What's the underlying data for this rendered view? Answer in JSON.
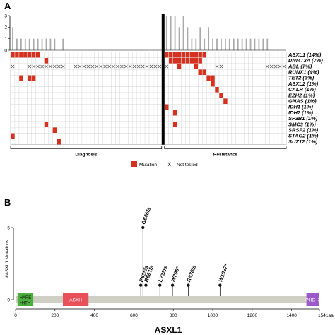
{
  "figure": {
    "panel_a_label": "A",
    "panel_b_label": "B"
  },
  "chart_data": [
    {
      "type": "heatmap",
      "panel": "A",
      "bar_axis_ticks": [
        0,
        1,
        2,
        3
      ],
      "groups": [
        "Diagnosis",
        "Resistance"
      ],
      "legend": {
        "mutation": "Mutation",
        "not_tested": "Not tested"
      },
      "colors": {
        "mutation": "#d7301f",
        "bar": "#aaaaaa",
        "grid": "#cccccc"
      },
      "rows": [
        "ASXL1 (14%)",
        "DNMT3A (7%)",
        "ABL (7%)",
        "RUNX1 (4%)",
        "TET2 (3%)",
        "ASXL2 (1%)",
        "CALR (1%)",
        "EZH2 (1%)",
        "GNAS (1%)",
        "IDH1 (1%)",
        "IDH2 (1%)",
        "SF3B1 (1%)",
        "SMC3 (1%)",
        "SRSF2 (1%)",
        "STAG2 (1%)",
        "SUZ12 (1%)"
      ],
      "diagnosis": {
        "n_samples": 36,
        "mutation_counts": [
          2,
          1,
          1,
          1,
          1,
          1,
          1,
          1,
          1,
          1,
          1,
          0,
          1,
          0,
          0,
          0,
          0,
          0,
          0,
          0,
          0,
          0,
          0,
          0,
          0,
          0,
          0,
          0,
          0,
          0,
          0,
          0,
          0,
          0,
          0,
          0
        ],
        "mutations": [
          [
            0,
            0
          ],
          [
            1,
            0
          ],
          [
            2,
            0
          ],
          [
            3,
            0
          ],
          [
            4,
            0
          ],
          [
            5,
            0
          ],
          [
            6,
            0
          ],
          [
            2,
            4
          ],
          [
            0,
            14
          ],
          [
            4,
            4
          ],
          [
            5,
            4
          ],
          [
            8,
            1
          ],
          [
            8,
            12
          ],
          [
            10,
            13
          ],
          [
            11,
            15
          ]
        ],
        "not_tested_columns": [
          0,
          4,
          5,
          6,
          7,
          8,
          9,
          10,
          11,
          12,
          15,
          16,
          17,
          18,
          19,
          20,
          21,
          22,
          23,
          24,
          25,
          26,
          27,
          28,
          29,
          30,
          31,
          32,
          33,
          34,
          35
        ]
      },
      "resistance": {
        "n_samples": 29,
        "mutation_counts": [
          3,
          3,
          3,
          2,
          3,
          2,
          1,
          1,
          2,
          1,
          2,
          1,
          1,
          1,
          1,
          1,
          1,
          1,
          1,
          1,
          1,
          1,
          1,
          1,
          1,
          0,
          0,
          0,
          0
        ],
        "mutations": [
          [
            0,
            0
          ],
          [
            1,
            0
          ],
          [
            2,
            0
          ],
          [
            3,
            0
          ],
          [
            4,
            0
          ],
          [
            5,
            0
          ],
          [
            6,
            0
          ],
          [
            7,
            0
          ],
          [
            8,
            0
          ],
          [
            9,
            0
          ],
          [
            1,
            1
          ],
          [
            2,
            1
          ],
          [
            3,
            1
          ],
          [
            4,
            1
          ],
          [
            5,
            1
          ],
          [
            6,
            1
          ],
          [
            7,
            1
          ],
          [
            8,
            1
          ],
          [
            3,
            2
          ],
          [
            7,
            2
          ],
          [
            8,
            3
          ],
          [
            9,
            3
          ],
          [
            10,
            4
          ],
          [
            11,
            4
          ],
          [
            11,
            5
          ],
          [
            12,
            6
          ],
          [
            13,
            7
          ],
          [
            14,
            8
          ],
          [
            0,
            9
          ],
          [
            2,
            10
          ],
          [
            2,
            12
          ]
        ],
        "not_tested_columns": [
          0,
          12,
          13,
          24,
          25,
          26,
          27,
          28
        ]
      }
    },
    {
      "type": "scatter",
      "panel": "B",
      "style": "lollipop",
      "title": "ASXL1",
      "ylabel": "#ASXL1 Mutations",
      "ylim": [
        0,
        5
      ],
      "y_ticks": [
        0,
        5
      ],
      "xlim": [
        0,
        1541
      ],
      "x_ticks": [
        0,
        200,
        400,
        600,
        800,
        1000,
        1200,
        1400
      ],
      "x_end_label": "1541aa",
      "points": [
        {
          "label": "E635fs",
          "x": 635,
          "y": 1
        },
        {
          "label": "G646fs",
          "x": 646,
          "y": 5
        },
        {
          "label": "R661fs",
          "x": 661,
          "y": 1
        },
        {
          "label": "L732fs",
          "x": 732,
          "y": 1
        },
        {
          "label": "W796*",
          "x": 796,
          "y": 1
        },
        {
          "label": "R876fs",
          "x": 876,
          "y": 1
        },
        {
          "label": "W1037*",
          "x": 1037,
          "y": 1
        }
      ],
      "domains": [
        {
          "name": "HARE-HTH",
          "line1": "HARE",
          "line2": "-HTH",
          "start": 10,
          "end": 90,
          "color": "#4cae3c"
        },
        {
          "name": "ASXH",
          "start": 240,
          "end": 370,
          "color": "#e8505a"
        },
        {
          "name": "PHD_3",
          "start": 1475,
          "end": 1541,
          "color": "#9b59c9"
        }
      ],
      "colors": {
        "protein": "#cfcfc4",
        "stem": "#222222"
      }
    }
  ]
}
